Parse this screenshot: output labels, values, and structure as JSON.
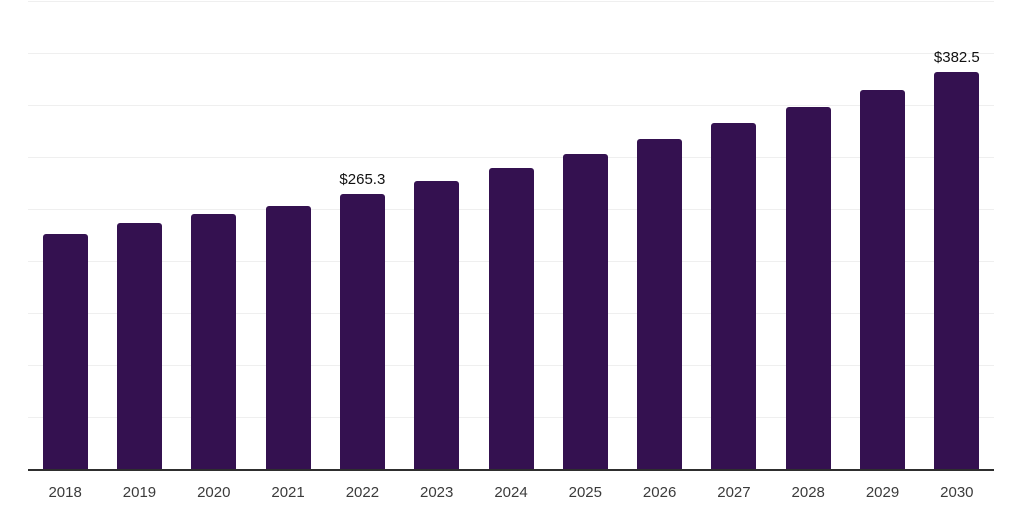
{
  "chart_data": {
    "type": "bar",
    "title": "",
    "xlabel": "",
    "ylabel": "",
    "categories": [
      "2018",
      "2019",
      "2020",
      "2021",
      "2022",
      "2023",
      "2024",
      "2025",
      "2026",
      "2027",
      "2028",
      "2029",
      "2030"
    ],
    "values": [
      227.4,
      237.9,
      245.8,
      254.3,
      265.3,
      277.7,
      290.7,
      304.3,
      318.6,
      333.5,
      349.1,
      365.4,
      382.5
    ],
    "data_labels": [
      "",
      "",
      "",
      "",
      "$265.3",
      "",
      "",
      "",
      "",
      "",
      "",
      "",
      "$382.5"
    ],
    "ylim": [
      0,
      452
    ],
    "gridline_values": [
      50,
      100,
      150,
      200,
      250,
      300,
      350,
      400,
      450
    ],
    "grid": "horizontal",
    "legend": "none",
    "colors": {
      "bar": "#341150",
      "gridline": "#efefef",
      "axis_line": "#2e2e2e",
      "tick_label": "#3b3b3b",
      "data_label": "#111111",
      "background": "#ffffff"
    }
  }
}
